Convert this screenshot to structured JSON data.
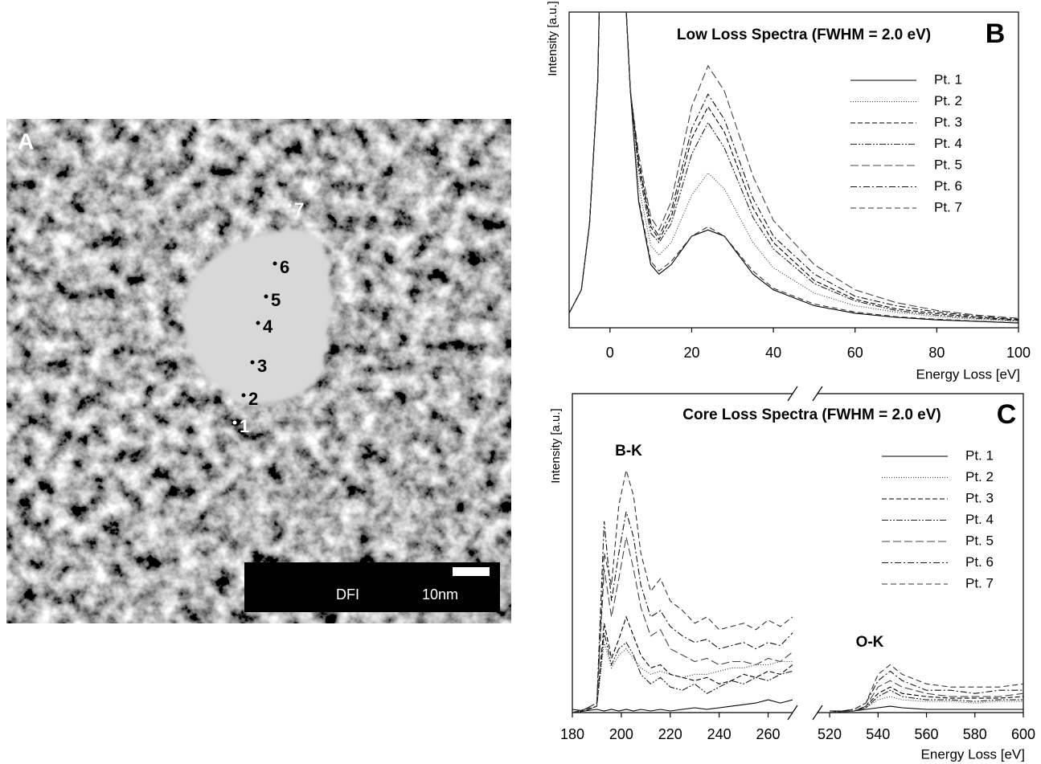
{
  "image_panel": {
    "label": "A",
    "points": [
      "1",
      "2",
      "3",
      "4",
      "5",
      "6",
      "7"
    ],
    "mode": "DFI",
    "scale": "10nm"
  },
  "chart_data": [
    {
      "type": "line",
      "title": "Low Loss Spectra (FWHM = 2.0 eV)",
      "panel": "B",
      "x_label": "Energy Loss [eV]",
      "y_label": "Intensity [a.u.]",
      "x": [
        -10,
        -7,
        -5,
        -3,
        -1,
        2,
        4,
        5,
        7,
        10,
        12,
        15,
        20,
        24,
        28,
        35,
        40,
        50,
        60,
        70,
        80,
        90,
        100
      ],
      "xlim": [
        -10,
        100
      ],
      "xticks": [
        0,
        20,
        40,
        60,
        80,
        100
      ],
      "ylim": [
        0,
        100
      ],
      "series": [
        {
          "name": "Pt. 1",
          "color": "#000000",
          "dash": "none",
          "values": [
            4.6,
            12,
            33,
            78,
            200,
            200,
            100,
            75,
            40,
            20,
            17,
            20,
            29,
            31,
            29,
            17,
            12,
            7,
            4.6,
            3.3,
            2.5,
            2,
            1.5
          ]
        },
        {
          "name": "Pt. 2",
          "color": "#333333",
          "dash": "1 2",
          "values": [
            4.6,
            12,
            33,
            78,
            200,
            200,
            100,
            75,
            45,
            26,
            23,
            27,
            42,
            49,
            44,
            27,
            19,
            11,
            7,
            5,
            3.5,
            2.7,
            2
          ]
        },
        {
          "name": "Pt. 3",
          "color": "#000000",
          "dash": "6 3",
          "values": [
            4.6,
            12,
            33,
            78,
            200,
            200,
            100,
            75,
            52,
            32,
            28,
            35,
            60,
            70,
            62,
            38,
            27,
            15,
            9,
            6,
            4.5,
            3.3,
            2.5
          ]
        },
        {
          "name": "Pt. 4",
          "color": "#222222",
          "dash": "8 2 2 2 2 2",
          "values": [
            4.6,
            12,
            33,
            78,
            200,
            200,
            100,
            75,
            50,
            30,
            27,
            33,
            55,
            65,
            57,
            35,
            25,
            14,
            8.5,
            5.5,
            4,
            3,
            2.3
          ]
        },
        {
          "name": "Pt. 5",
          "color": "#444444",
          "dash": "10 4",
          "values": [
            4.6,
            12,
            33,
            78,
            200,
            200,
            100,
            75,
            55,
            35,
            31,
            40,
            70,
            83,
            75,
            48,
            34,
            20,
            12,
            8,
            5.5,
            4,
            3
          ]
        },
        {
          "name": "Pt. 6",
          "color": "#111111",
          "dash": "8 3 2 3",
          "values": [
            4.6,
            12,
            33,
            78,
            200,
            200,
            100,
            75,
            53,
            33,
            29,
            37,
            63,
            74,
            66,
            41,
            29,
            17,
            10,
            7,
            5,
            3.7,
            2.7
          ]
        },
        {
          "name": "Pt. 7",
          "color": "#333333",
          "dash": "7 4",
          "values": [
            4.6,
            12,
            33,
            78,
            200,
            200,
            100,
            75,
            41,
            21,
            18,
            21,
            29,
            32,
            29,
            18,
            12.5,
            7.5,
            5,
            3.5,
            2.7,
            2.1,
            1.6
          ]
        }
      ]
    },
    {
      "type": "line",
      "title": "Core Loss Spectra (FWHM = 2.0 eV)",
      "panel": "C",
      "x_label": "Energy Loss [eV]",
      "y_label": "Intensity [a.u.]",
      "annotations": [
        "B-K",
        "O-K"
      ],
      "x": [
        180,
        185,
        190,
        193,
        196,
        199,
        202,
        205,
        208,
        212,
        216,
        220,
        225,
        230,
        235,
        240,
        245,
        250,
        255,
        260,
        265,
        270,
        520,
        530,
        535,
        540,
        545,
        550,
        560,
        570,
        580,
        590,
        600
      ],
      "xlim": [
        180,
        600
      ],
      "xbreak": [
        270,
        515
      ],
      "xticks": [
        180,
        200,
        220,
        240,
        260,
        520,
        540,
        560,
        580,
        600
      ],
      "ylim": [
        0,
        100
      ],
      "series": [
        {
          "name": "Pt. 1",
          "color": "#000000",
          "dash": "none",
          "values": [
            1,
            0.5,
            1,
            0.5,
            1,
            0.5,
            1,
            0.5,
            1,
            0.5,
            1,
            0.5,
            1,
            1.5,
            1,
            1.5,
            2,
            2.5,
            3,
            4,
            3,
            4,
            0.5,
            0.5,
            1,
            1.5,
            2,
            1.5,
            1,
            1,
            1,
            1,
            1
          ]
        },
        {
          "name": "Pt. 2",
          "color": "#333333",
          "dash": "1 2",
          "values": [
            0,
            0.5,
            2,
            22,
            14,
            18,
            20,
            17,
            14,
            12,
            13,
            12,
            11,
            12,
            12,
            13,
            14,
            14,
            15,
            15,
            16,
            16,
            0,
            0.5,
            1.5,
            4,
            5,
            4,
            3.5,
            3.5,
            3,
            3.5,
            3.5
          ]
        },
        {
          "name": "Pt. 3",
          "color": "#000000",
          "dash": "6 3",
          "values": [
            0,
            0.5,
            2,
            28,
            17,
            23,
            30,
            24,
            18,
            14,
            15,
            12,
            11,
            10,
            11,
            9,
            10,
            12,
            11,
            13,
            12,
            15,
            0,
            0.5,
            2,
            6,
            8,
            6,
            5,
            4.5,
            4.5,
            4.5,
            5
          ]
        },
        {
          "name": "Pt. 4",
          "color": "#222222",
          "dash": "8 2 2 2 2 2",
          "values": [
            0,
            0.5,
            2,
            25,
            15,
            20,
            22,
            18,
            12,
            9,
            11,
            8,
            7,
            9,
            6,
            8,
            10,
            9,
            11,
            10,
            12,
            13,
            0,
            0.5,
            1.5,
            5,
            7,
            5,
            4,
            4,
            3.5,
            4,
            4
          ]
        },
        {
          "name": "Pt. 5",
          "color": "#444444",
          "dash": "10 4",
          "values": [
            0,
            1,
            2,
            45,
            30,
            42,
            55,
            45,
            33,
            24,
            26,
            20,
            18,
            16,
            17,
            15,
            16,
            16,
            15,
            17,
            16,
            19,
            0,
            0.5,
            2,
            8,
            10,
            8,
            6,
            5,
            5,
            5,
            6
          ]
        },
        {
          "name": "Pt. 6",
          "color": "#111111",
          "dash": "8 3 2 3",
          "values": [
            0,
            1,
            3,
            60,
            35,
            50,
            63,
            55,
            40,
            30,
            32,
            27,
            24,
            22,
            23,
            20,
            21,
            22,
            20,
            22,
            21,
            25,
            0,
            1,
            3,
            10,
            13,
            10,
            7,
            7,
            6,
            7,
            7
          ]
        },
        {
          "name": "Pt. 7",
          "color": "#333333",
          "dash": "7 4",
          "values": [
            0,
            1,
            3,
            50,
            40,
            65,
            76,
            68,
            50,
            38,
            42,
            35,
            32,
            28,
            30,
            26,
            27,
            28,
            26,
            29,
            27,
            30,
            0,
            1,
            3,
            12,
            15,
            12,
            9,
            8,
            8,
            8,
            9
          ]
        }
      ]
    }
  ]
}
